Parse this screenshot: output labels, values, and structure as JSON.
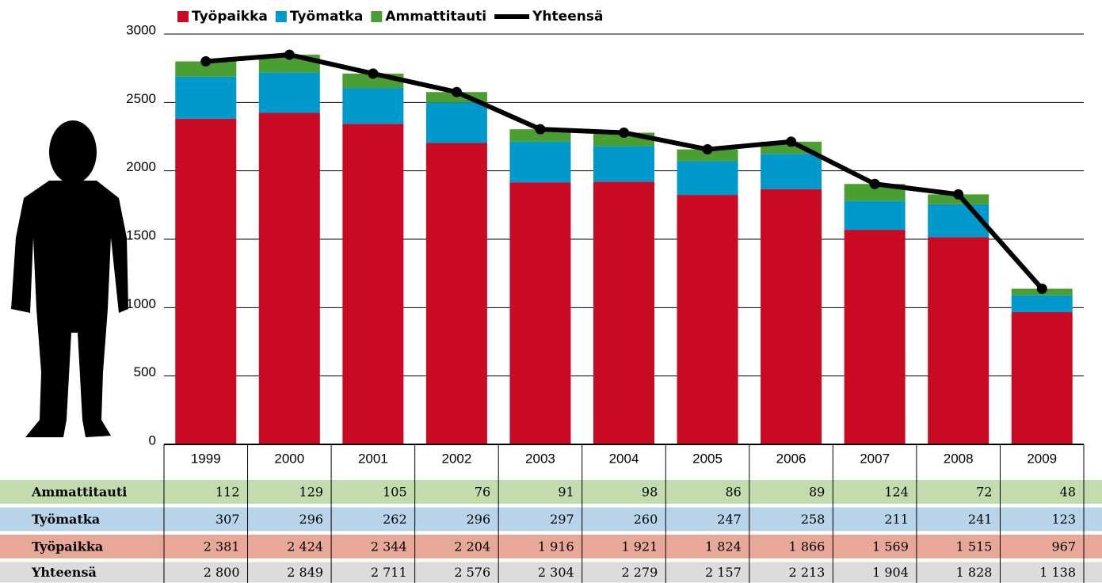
{
  "chart_data": {
    "type": "bar",
    "stacked": true,
    "categories": [
      "1999",
      "2000",
      "2001",
      "2002",
      "2003",
      "2004",
      "2005",
      "2006",
      "2007",
      "2008",
      "2009"
    ],
    "series": [
      {
        "name": "Työpaikka",
        "color": "#c80a23",
        "values": [
          2381,
          2424,
          2344,
          2204,
          1916,
          1921,
          1824,
          1866,
          1569,
          1515,
          967
        ],
        "value_labels": [
          "2 381",
          "2 424",
          "2 344",
          "2 204",
          "1 916",
          "1 921",
          "1 824",
          "1 866",
          "1 569",
          "1 515",
          "967"
        ]
      },
      {
        "name": "Työmatka",
        "color": "#0099cc",
        "values": [
          307,
          296,
          262,
          296,
          297,
          260,
          247,
          258,
          211,
          241,
          123
        ]
      },
      {
        "name": "Ammattitauti",
        "color": "#4a9e32",
        "values": [
          112,
          129,
          105,
          76,
          91,
          98,
          86,
          89,
          124,
          72,
          48
        ]
      },
      {
        "name": "Yhteensä",
        "color": "#000000",
        "type": "line",
        "values": [
          2800,
          2849,
          2711,
          2576,
          2304,
          2279,
          2157,
          2213,
          1904,
          1828,
          1138
        ],
        "value_labels": [
          "2 800",
          "2 849",
          "2 711",
          "2 576",
          "2 304",
          "2 279",
          "2 157",
          "2 213",
          "1 904",
          "1 828",
          "1 138"
        ]
      }
    ],
    "ylim": [
      0,
      3000
    ],
    "yticks": [
      0,
      500,
      1000,
      1500,
      2000,
      2500,
      3000
    ],
    "grid": true
  }
}
